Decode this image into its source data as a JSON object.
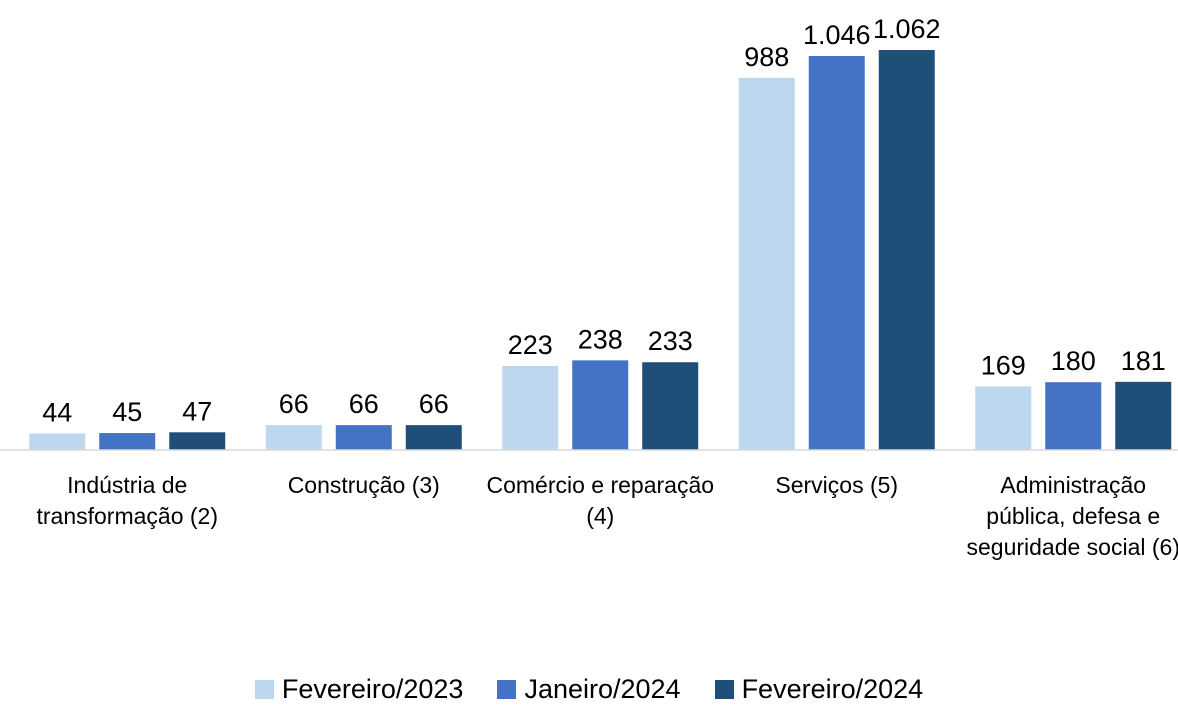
{
  "chart_data": {
    "type": "bar",
    "categories": [
      "Indústria de transformação (2)",
      "Construção (3)",
      "Comércio e reparação (4)",
      "Serviços (5)",
      "Administração pública, defesa e seguridade social (6)"
    ],
    "series": [
      {
        "name": "Fevereiro/2023",
        "color": "#bdd7ee",
        "values": [
          44,
          66,
          223,
          988,
          169
        ],
        "value_labels": [
          "44",
          "66",
          "223",
          "988",
          "169"
        ]
      },
      {
        "name": "Janeiro/2024",
        "color": "#4472c4",
        "values": [
          45,
          66,
          238,
          1046,
          180
        ],
        "value_labels": [
          "45",
          "66",
          "238",
          "1.046",
          "180"
        ]
      },
      {
        "name": "Fevereiro/2024",
        "color": "#1f4e79",
        "values": [
          47,
          66,
          233,
          1062,
          181
        ],
        "value_labels": [
          "47",
          "66",
          "233",
          "1.062",
          "181"
        ]
      }
    ],
    "legend": "bottom"
  }
}
